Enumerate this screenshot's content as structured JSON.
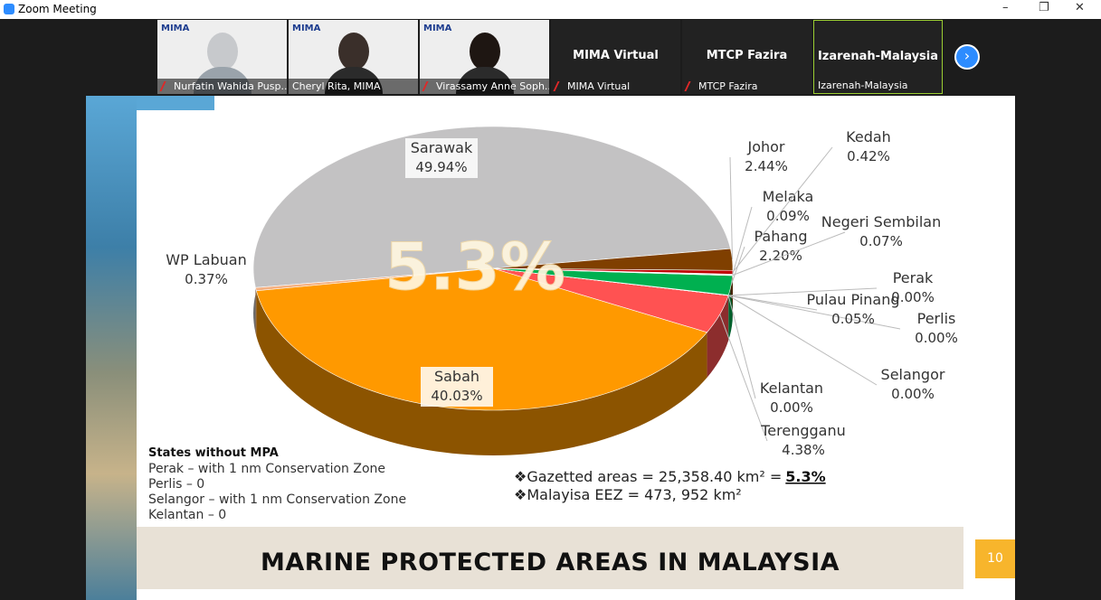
{
  "window": {
    "title": "Zoom Meeting"
  },
  "participants": [
    {
      "name": "Nurfatin Wahida Pusp..."
    },
    {
      "name": "Cheryl Rita, MIMA"
    },
    {
      "name": "Virassamy Anne Soph..."
    },
    {
      "name": "MIMA Virtual"
    },
    {
      "name": "MTCP Fazira"
    },
    {
      "name": "Izarenah-Malaysia"
    }
  ],
  "slide": {
    "title": "MARINE PROTECTED AREAS IN MALAYSIA",
    "big_figure": "5.3%",
    "no_mpa": {
      "heading": "States without MPA",
      "lines": [
        "Perak – with 1 nm Conservation Zone",
        "Perlis – 0",
        "Selangor – with 1 nm Conservation Zone",
        "Kelantan – 0"
      ]
    },
    "facts": [
      {
        "text": "❖Gazetted areas =  25,358.40 km²  = ",
        "emphasis": "5.3%"
      },
      {
        "text": "❖Malayisa EEZ = 473, 952 km²"
      }
    ],
    "page_number": "10"
  },
  "chart_data": {
    "type": "pie",
    "categories": [
      "Sarawak",
      "WP Labuan",
      "Sabah",
      "Terengganu",
      "Kelantan",
      "Selangor",
      "Perlis",
      "Perak",
      "Pulau Pinang",
      "Pahang",
      "Negeri Sembilan",
      "Melaka",
      "Kedah",
      "Johor"
    ],
    "values": [
      49.94,
      0.37,
      40.03,
      4.38,
      0,
      0,
      0,
      0,
      0.05,
      2.2,
      0.07,
      0.09,
      0.42,
      2.44
    ],
    "value_labels": [
      "49.94%",
      "0.37%",
      "40.03%",
      "4.38%",
      "0.00%",
      "0.00%",
      "0.00%",
      "0.00%",
      "0.05%",
      "2.20%",
      "0.07%",
      "0.09%",
      "0.42%",
      "2.44%"
    ],
    "colors": [
      "#c3c2c3",
      "#f4b183",
      "#ff9900",
      "#ff5252",
      "#5b9bd5",
      "#7030a0",
      "#ffc000",
      "#4472c4",
      "#a9d18e",
      "#00b050",
      "#2e75b6",
      "#8faadc",
      "#c00000",
      "#7f3f00"
    ]
  }
}
